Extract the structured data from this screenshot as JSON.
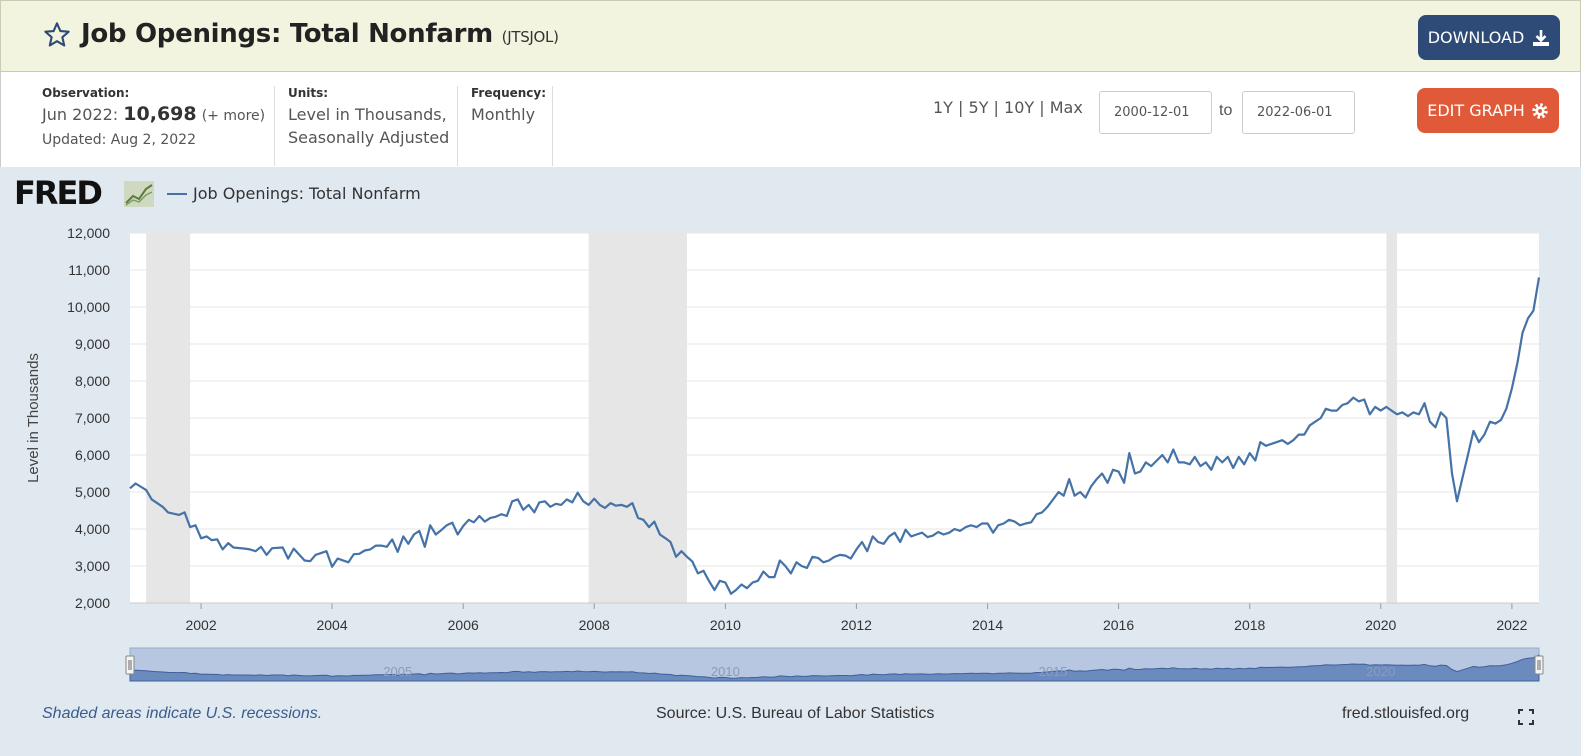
{
  "header": {
    "title": "Job Openings: Total Nonfarm",
    "series_id": "(JTSJOL)",
    "download_label": "DOWNLOAD"
  },
  "info": {
    "observation_label": "Observation:",
    "observation_date": "Jun 2022:",
    "observation_value": "10,698",
    "more_link": "(+ more)",
    "updated": "Updated: Aug 2, 2022",
    "units_label": "Units:",
    "units_line1": "Level in Thousands,",
    "units_line2": "Seasonally Adjusted",
    "frequency_label": "Frequency:",
    "frequency_value": "Monthly"
  },
  "controls": {
    "ranges": "1Y | 5Y | 10Y | Max",
    "start_date": "2000-12-01",
    "to": "to",
    "end_date": "2022-06-01",
    "edit_label": "EDIT GRAPH"
  },
  "logo": "FRED",
  "legend_label": "Job Openings: Total Nonfarm",
  "footer": {
    "note": "Shaded areas indicate U.S. recessions.",
    "source": "Source: U.S. Bureau of Labor Statistics",
    "url": "fred.stlouisfed.org"
  },
  "colors": {
    "line": "#4572a7",
    "recession": "#e6e6e6",
    "navigator": "#b7c6e1"
  },
  "chart_data": {
    "type": "line",
    "ylabel": "Level in Thousands",
    "ylim": [
      2000,
      12000
    ],
    "y_ticks": [
      "2,000",
      "3,000",
      "4,000",
      "5,000",
      "6,000",
      "7,000",
      "8,000",
      "9,000",
      "10,000",
      "11,000",
      "12,000"
    ],
    "y_tick_values": [
      2000,
      3000,
      4000,
      5000,
      6000,
      7000,
      8000,
      9000,
      10000,
      11000,
      12000
    ],
    "x_ticks": [
      "2002",
      "2004",
      "2006",
      "2008",
      "2010",
      "2012",
      "2014",
      "2016",
      "2018",
      "2020",
      "2022"
    ],
    "x_range": [
      "2000-12-01",
      "2022-06-01"
    ],
    "navigator_labels": [
      "2005",
      "2010",
      "2015",
      "2020"
    ],
    "recessions": [
      [
        "2001-03-01",
        "2001-11-01"
      ],
      [
        "2007-12-01",
        "2009-06-01"
      ],
      [
        "2020-02-01",
        "2020-04-01"
      ]
    ],
    "series": [
      {
        "name": "Job Openings: Total Nonfarm",
        "points": [
          [
            "2000-12-01",
            5100
          ],
          [
            "2001-01-01",
            5230
          ],
          [
            "2001-03-01",
            5050
          ],
          [
            "2001-04-01",
            4800
          ],
          [
            "2001-06-01",
            4600
          ],
          [
            "2001-07-01",
            4450
          ],
          [
            "2001-09-01",
            4380
          ],
          [
            "2001-10-01",
            4450
          ],
          [
            "2001-11-01",
            4050
          ],
          [
            "2001-12-01",
            4100
          ],
          [
            "2002-01-01",
            3750
          ],
          [
            "2002-02-01",
            3800
          ],
          [
            "2002-03-01",
            3700
          ],
          [
            "2002-04-01",
            3720
          ],
          [
            "2002-05-01",
            3450
          ],
          [
            "2002-06-01",
            3620
          ],
          [
            "2002-07-01",
            3500
          ],
          [
            "2002-09-01",
            3470
          ],
          [
            "2002-10-01",
            3450
          ],
          [
            "2002-11-01",
            3400
          ],
          [
            "2002-12-01",
            3520
          ],
          [
            "2003-01-01",
            3300
          ],
          [
            "2003-02-01",
            3480
          ],
          [
            "2003-04-01",
            3500
          ],
          [
            "2003-05-01",
            3200
          ],
          [
            "2003-06-01",
            3470
          ],
          [
            "2003-08-01",
            3150
          ],
          [
            "2003-09-01",
            3130
          ],
          [
            "2003-10-01",
            3300
          ],
          [
            "2003-12-01",
            3400
          ],
          [
            "2004-01-01",
            2980
          ],
          [
            "2004-02-01",
            3200
          ],
          [
            "2004-04-01",
            3100
          ],
          [
            "2004-05-01",
            3320
          ],
          [
            "2004-06-01",
            3330
          ],
          [
            "2004-07-01",
            3420
          ],
          [
            "2004-08-01",
            3450
          ],
          [
            "2004-09-01",
            3550
          ],
          [
            "2004-10-01",
            3550
          ],
          [
            "2004-11-01",
            3520
          ],
          [
            "2004-12-01",
            3720
          ],
          [
            "2005-01-01",
            3380
          ],
          [
            "2005-02-01",
            3800
          ],
          [
            "2005-03-01",
            3600
          ],
          [
            "2005-04-01",
            3850
          ],
          [
            "2005-05-01",
            3950
          ],
          [
            "2005-06-01",
            3520
          ],
          [
            "2005-07-01",
            4100
          ],
          [
            "2005-08-01",
            3850
          ],
          [
            "2005-09-01",
            3970
          ],
          [
            "2005-10-01",
            4100
          ],
          [
            "2005-11-01",
            4170
          ],
          [
            "2005-12-01",
            3850
          ],
          [
            "2006-01-01",
            4080
          ],
          [
            "2006-02-01",
            4250
          ],
          [
            "2006-03-01",
            4180
          ],
          [
            "2006-04-01",
            4350
          ],
          [
            "2006-05-01",
            4200
          ],
          [
            "2006-06-01",
            4300
          ],
          [
            "2006-07-01",
            4330
          ],
          [
            "2006-08-01",
            4400
          ],
          [
            "2006-09-01",
            4350
          ],
          [
            "2006-10-01",
            4750
          ],
          [
            "2006-11-01",
            4800
          ],
          [
            "2006-12-01",
            4520
          ],
          [
            "2007-01-01",
            4650
          ],
          [
            "2007-02-01",
            4450
          ],
          [
            "2007-03-01",
            4720
          ],
          [
            "2007-04-01",
            4750
          ],
          [
            "2007-05-01",
            4600
          ],
          [
            "2007-06-01",
            4680
          ],
          [
            "2007-07-01",
            4650
          ],
          [
            "2007-08-01",
            4800
          ],
          [
            "2007-09-01",
            4720
          ],
          [
            "2007-10-01",
            4980
          ],
          [
            "2007-11-01",
            4750
          ],
          [
            "2007-12-01",
            4650
          ],
          [
            "2008-01-01",
            4820
          ],
          [
            "2008-02-01",
            4650
          ],
          [
            "2008-03-01",
            4570
          ],
          [
            "2008-04-01",
            4700
          ],
          [
            "2008-05-01",
            4630
          ],
          [
            "2008-06-01",
            4650
          ],
          [
            "2008-07-01",
            4600
          ],
          [
            "2008-08-01",
            4700
          ],
          [
            "2008-09-01",
            4300
          ],
          [
            "2008-10-01",
            4250
          ],
          [
            "2008-11-01",
            4050
          ],
          [
            "2008-12-01",
            4200
          ],
          [
            "2009-01-01",
            3850
          ],
          [
            "2009-02-01",
            3750
          ],
          [
            "2009-03-01",
            3650
          ],
          [
            "2009-04-01",
            3250
          ],
          [
            "2009-05-01",
            3400
          ],
          [
            "2009-06-01",
            3250
          ],
          [
            "2009-07-01",
            3120
          ],
          [
            "2009-08-01",
            2800
          ],
          [
            "2009-09-01",
            2870
          ],
          [
            "2009-10-01",
            2600
          ],
          [
            "2009-11-01",
            2350
          ],
          [
            "2009-12-01",
            2600
          ],
          [
            "2010-01-01",
            2550
          ],
          [
            "2010-02-01",
            2250
          ],
          [
            "2010-03-01",
            2350
          ],
          [
            "2010-04-01",
            2500
          ],
          [
            "2010-05-01",
            2400
          ],
          [
            "2010-06-01",
            2550
          ],
          [
            "2010-07-01",
            2600
          ],
          [
            "2010-08-01",
            2850
          ],
          [
            "2010-09-01",
            2700
          ],
          [
            "2010-10-01",
            2700
          ],
          [
            "2010-11-01",
            3150
          ],
          [
            "2010-12-01",
            3000
          ],
          [
            "2011-01-01",
            2800
          ],
          [
            "2011-02-01",
            3100
          ],
          [
            "2011-03-01",
            3000
          ],
          [
            "2011-04-01",
            2950
          ],
          [
            "2011-05-01",
            3250
          ],
          [
            "2011-06-01",
            3220
          ],
          [
            "2011-07-01",
            3100
          ],
          [
            "2011-08-01",
            3150
          ],
          [
            "2011-09-01",
            3250
          ],
          [
            "2011-10-01",
            3300
          ],
          [
            "2011-11-01",
            3280
          ],
          [
            "2011-12-01",
            3200
          ],
          [
            "2012-01-01",
            3450
          ],
          [
            "2012-02-01",
            3650
          ],
          [
            "2012-03-01",
            3400
          ],
          [
            "2012-04-01",
            3800
          ],
          [
            "2012-05-01",
            3650
          ],
          [
            "2012-06-01",
            3600
          ],
          [
            "2012-07-01",
            3800
          ],
          [
            "2012-08-01",
            3900
          ],
          [
            "2012-09-01",
            3650
          ],
          [
            "2012-10-01",
            3980
          ],
          [
            "2012-11-01",
            3800
          ],
          [
            "2012-12-01",
            3850
          ],
          [
            "2013-01-01",
            3900
          ],
          [
            "2013-02-01",
            3780
          ],
          [
            "2013-03-01",
            3820
          ],
          [
            "2013-04-01",
            3920
          ],
          [
            "2013-05-01",
            3850
          ],
          [
            "2013-06-01",
            3900
          ],
          [
            "2013-07-01",
            4000
          ],
          [
            "2013-08-01",
            3950
          ],
          [
            "2013-09-01",
            4050
          ],
          [
            "2013-10-01",
            4100
          ],
          [
            "2013-11-01",
            4050
          ],
          [
            "2013-12-01",
            4150
          ],
          [
            "2014-01-01",
            4150
          ],
          [
            "2014-02-01",
            3900
          ],
          [
            "2014-03-01",
            4100
          ],
          [
            "2014-04-01",
            4150
          ],
          [
            "2014-05-01",
            4250
          ],
          [
            "2014-06-01",
            4200
          ],
          [
            "2014-07-01",
            4100
          ],
          [
            "2014-08-01",
            4150
          ],
          [
            "2014-09-01",
            4180
          ],
          [
            "2014-10-01",
            4400
          ],
          [
            "2014-11-01",
            4450
          ],
          [
            "2014-12-01",
            4600
          ],
          [
            "2015-01-01",
            4800
          ],
          [
            "2015-02-01",
            5000
          ],
          [
            "2015-03-01",
            4900
          ],
          [
            "2015-04-01",
            5350
          ],
          [
            "2015-05-01",
            4900
          ],
          [
            "2015-06-01",
            5000
          ],
          [
            "2015-07-01",
            4850
          ],
          [
            "2015-08-01",
            5150
          ],
          [
            "2015-09-01",
            5350
          ],
          [
            "2015-10-01",
            5500
          ],
          [
            "2015-11-01",
            5250
          ],
          [
            "2015-12-01",
            5600
          ],
          [
            "2016-01-01",
            5550
          ],
          [
            "2016-02-01",
            5250
          ],
          [
            "2016-03-01",
            6050
          ],
          [
            "2016-04-01",
            5500
          ],
          [
            "2016-05-01",
            5550
          ],
          [
            "2016-06-01",
            5800
          ],
          [
            "2016-07-01",
            5700
          ],
          [
            "2016-08-01",
            5850
          ],
          [
            "2016-09-01",
            6000
          ],
          [
            "2016-10-01",
            5800
          ],
          [
            "2016-11-01",
            6150
          ],
          [
            "2016-12-01",
            5800
          ],
          [
            "2017-01-01",
            5800
          ],
          [
            "2017-02-01",
            5750
          ],
          [
            "2017-03-01",
            5950
          ],
          [
            "2017-04-01",
            5700
          ],
          [
            "2017-05-01",
            5800
          ],
          [
            "2017-06-01",
            5600
          ],
          [
            "2017-07-01",
            5950
          ],
          [
            "2017-08-01",
            5800
          ],
          [
            "2017-09-01",
            5950
          ],
          [
            "2017-10-01",
            5650
          ],
          [
            "2017-11-01",
            5950
          ],
          [
            "2017-12-01",
            5750
          ],
          [
            "2018-01-01",
            6050
          ],
          [
            "2018-02-01",
            5850
          ],
          [
            "2018-03-01",
            6350
          ],
          [
            "2018-04-01",
            6250
          ],
          [
            "2018-05-01",
            6300
          ],
          [
            "2018-06-01",
            6350
          ],
          [
            "2018-07-01",
            6400
          ],
          [
            "2018-08-01",
            6300
          ],
          [
            "2018-09-01",
            6400
          ],
          [
            "2018-10-01",
            6550
          ],
          [
            "2018-11-01",
            6550
          ],
          [
            "2018-12-01",
            6800
          ],
          [
            "2019-01-01",
            6900
          ],
          [
            "2019-02-01",
            7000
          ],
          [
            "2019-03-01",
            7250
          ],
          [
            "2019-04-01",
            7200
          ],
          [
            "2019-05-01",
            7200
          ],
          [
            "2019-06-01",
            7350
          ],
          [
            "2019-07-01",
            7400
          ],
          [
            "2019-08-01",
            7550
          ],
          [
            "2019-09-01",
            7450
          ],
          [
            "2019-10-01",
            7500
          ],
          [
            "2019-11-01",
            7100
          ],
          [
            "2019-12-01",
            7300
          ],
          [
            "2020-01-01",
            7200
          ],
          [
            "2020-02-01",
            7300
          ],
          [
            "2020-03-01",
            7200
          ],
          [
            "2020-04-01",
            7100
          ],
          [
            "2020-05-01",
            7150
          ],
          [
            "2020-06-01",
            7050
          ],
          [
            "2020-07-01",
            7150
          ],
          [
            "2020-08-01",
            7100
          ],
          [
            "2020-09-01",
            7400
          ],
          [
            "2020-10-01",
            6900
          ],
          [
            "2020-11-01",
            6750
          ],
          [
            "2020-12-01",
            7150
          ],
          [
            "2021-01-01",
            7000
          ],
          [
            "2021-02-01",
            5500
          ],
          [
            "2021-03-01",
            4750
          ],
          [
            "2021-04-01",
            5400
          ],
          [
            "2021-05-01",
            6000
          ],
          [
            "2021-06-01",
            6650
          ],
          [
            "2021-07-01",
            6350
          ],
          [
            "2021-08-01",
            6550
          ],
          [
            "2021-09-01",
            6900
          ],
          [
            "2021-10-01",
            6850
          ],
          [
            "2021-11-01",
            6950
          ],
          [
            "2021-12-01",
            7250
          ],
          [
            "2022-01-01",
            7800
          ],
          [
            "2022-02-01",
            8500
          ],
          [
            "2022-03-01",
            9300
          ],
          [
            "2022-04-01",
            9700
          ],
          [
            "2022-05-01",
            9900
          ],
          [
            "2022-06-01",
            10800
          ]
        ]
      }
    ]
  }
}
